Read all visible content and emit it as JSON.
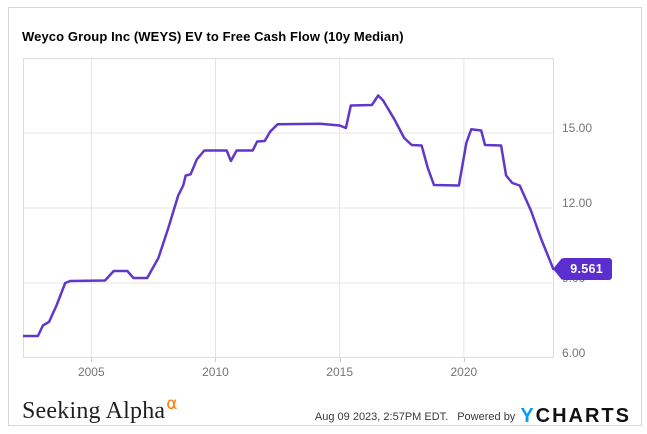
{
  "card": {
    "title": "Weyco Group Inc (WEYS) EV to Free Cash Flow (10y Median)"
  },
  "chart_data": {
    "type": "line",
    "title": "Weyco Group Inc (WEYS) EV to Free Cash Flow (10y Median)",
    "xlabel": "",
    "ylabel": "",
    "xlim": [
      2002.25,
      2023.63
    ],
    "ylim": [
      6.0,
      18.0
    ],
    "grid": true,
    "x_ticks": [
      2005,
      2010,
      2015,
      2020
    ],
    "x_tick_labels": [
      "2005",
      "2010",
      "2015",
      "2020"
    ],
    "y_ticks": [
      6,
      9,
      12,
      15
    ],
    "y_tick_labels": [
      "6.00",
      "9.00",
      "12.00",
      "15.00"
    ],
    "line_color": "#6137c9",
    "grid_color": "#e4e4e4",
    "plot_border_color": "#dcdcdc",
    "last_value_label": "9.561",
    "series": [
      {
        "name": "EV to Free Cash Flow (10y Median)",
        "points": [
          [
            2002.25,
            6.88
          ],
          [
            2002.85,
            6.88
          ],
          [
            2003.05,
            7.3
          ],
          [
            2003.3,
            7.45
          ],
          [
            2003.6,
            8.1
          ],
          [
            2003.95,
            9.0
          ],
          [
            2004.15,
            9.08
          ],
          [
            2005.55,
            9.1
          ],
          [
            2005.9,
            9.48
          ],
          [
            2006.45,
            9.48
          ],
          [
            2006.7,
            9.2
          ],
          [
            2007.25,
            9.2
          ],
          [
            2007.7,
            10.0
          ],
          [
            2008.1,
            11.2
          ],
          [
            2008.5,
            12.5
          ],
          [
            2008.7,
            12.9
          ],
          [
            2008.8,
            13.3
          ],
          [
            2009.0,
            13.35
          ],
          [
            2009.25,
            13.95
          ],
          [
            2009.55,
            14.3
          ],
          [
            2010.45,
            14.3
          ],
          [
            2010.62,
            13.88
          ],
          [
            2010.85,
            14.3
          ],
          [
            2011.5,
            14.3
          ],
          [
            2011.68,
            14.66
          ],
          [
            2011.98,
            14.68
          ],
          [
            2012.2,
            15.05
          ],
          [
            2012.5,
            15.35
          ],
          [
            2014.2,
            15.37
          ],
          [
            2015.0,
            15.3
          ],
          [
            2015.25,
            15.2
          ],
          [
            2015.45,
            16.1
          ],
          [
            2016.3,
            16.12
          ],
          [
            2016.55,
            16.5
          ],
          [
            2016.75,
            16.3
          ],
          [
            2017.2,
            15.55
          ],
          [
            2017.6,
            14.8
          ],
          [
            2017.9,
            14.52
          ],
          [
            2018.3,
            14.5
          ],
          [
            2018.55,
            13.6
          ],
          [
            2018.8,
            12.92
          ],
          [
            2019.8,
            12.9
          ],
          [
            2020.1,
            14.6
          ],
          [
            2020.3,
            15.15
          ],
          [
            2020.7,
            15.1
          ],
          [
            2020.85,
            14.52
          ],
          [
            2021.5,
            14.5
          ],
          [
            2021.7,
            13.3
          ],
          [
            2021.95,
            13.0
          ],
          [
            2022.25,
            12.9
          ],
          [
            2022.7,
            11.9
          ],
          [
            2023.1,
            10.8
          ],
          [
            2023.6,
            9.561
          ]
        ]
      }
    ]
  },
  "badge": {
    "value": "9.561",
    "color": "#5b2ecf",
    "text_color": "#ffffff"
  },
  "footer": {
    "seeking_alpha": {
      "text": "Seeking Alpha",
      "alpha_symbol": "α",
      "alpha_color": "#ff7a00"
    },
    "timestamp": "Aug 09 2023, 2:57PM EDT.",
    "powered_by": "Powered by",
    "ycharts": {
      "y": "Y",
      "charts": "CHARTS",
      "y_color": "#0c9bf5",
      "charts_color": "#111111"
    }
  }
}
